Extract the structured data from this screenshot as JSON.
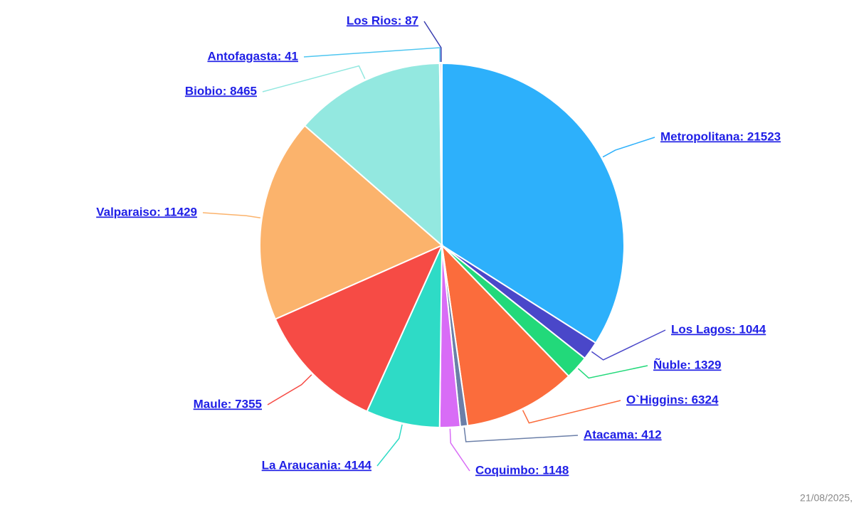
{
  "chart_data": {
    "type": "pie",
    "values": [
      21523,
      1044,
      1329,
      6324,
      412,
      1148,
      4144,
      7355,
      11429,
      8465,
      41,
      87
    ],
    "value_labels": [
      "Metropolitana: 21523",
      "Los Lagos: 1044",
      "Ñuble: 1329",
      "O`Higgins: 6324",
      "Atacama: 412",
      "Coquimbo: 1148",
      "La Araucania: 4144",
      "Maule: 7355",
      "Valparaiso: 11429",
      "Biobio: 8465",
      "Antofagasta: 41",
      "Los Rios: 87"
    ],
    "colors": [
      "#2db0fb",
      "#4a47c9",
      "#22d97a",
      "#fb6c3c",
      "#6b7fa8",
      "#d86cf6",
      "#2edbc6",
      "#f64b45",
      "#fbb36c",
      "#93e8e0",
      "#4ec6f0",
      "#3b3fb0"
    ],
    "footer_text": "21/08/2025,"
  }
}
